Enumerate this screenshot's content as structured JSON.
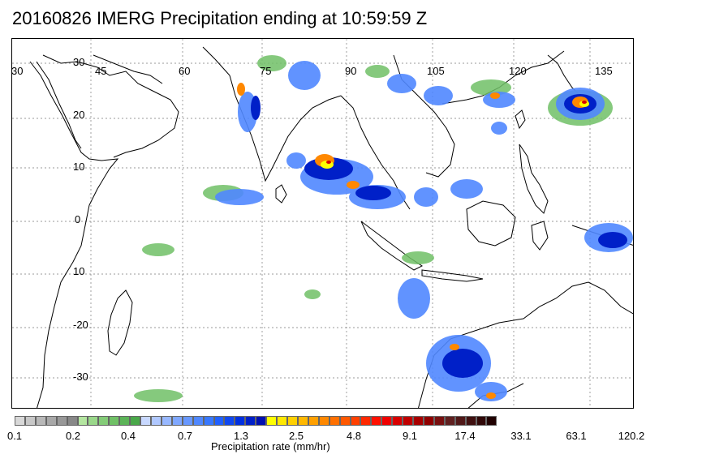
{
  "header": {
    "title": "20160826 IMERG Precipitation ending at 10:59:59 Z"
  },
  "map": {
    "lon_labels": [
      "30",
      "45",
      "60",
      "75",
      "90",
      "105",
      "120",
      "135"
    ],
    "lat_labels": [
      "30",
      "20",
      "10",
      "0",
      "10",
      "-20",
      "-30"
    ],
    "gridlines": "dotted",
    "coastline_color": "#000000"
  },
  "legend": {
    "title": "Precipitation rate (mm/hr)",
    "tick_labels": [
      "0.1",
      "0.2",
      "0.4",
      "0.7",
      "1.3",
      "2.5",
      "4.8",
      "9.1",
      "17.4",
      "33.1",
      "63.1",
      "120.2"
    ],
    "colors": [
      "#d8d8d8",
      "#c8c8c8",
      "#b8b8b8",
      "#a8a8a8",
      "#989898",
      "#888888",
      "#b4e6a0",
      "#9ad88a",
      "#84cc78",
      "#70c066",
      "#5cb458",
      "#4aa84a",
      "#c8d8ff",
      "#b0c8ff",
      "#98b8ff",
      "#80a8ff",
      "#6898ff",
      "#5088ff",
      "#3878ff",
      "#2060ff",
      "#1048f0",
      "#0030e0",
      "#0020c8",
      "#0010b0",
      "#ffff00",
      "#ffe800",
      "#ffd000",
      "#ffb800",
      "#ffa000",
      "#ff8800",
      "#ff7000",
      "#ff5800",
      "#ff4000",
      "#ff2800",
      "#ff1000",
      "#f00000",
      "#d80000",
      "#c00000",
      "#a80000",
      "#900000",
      "#781010",
      "#602020",
      "#501818",
      "#401010",
      "#300808",
      "#200000"
    ]
  }
}
